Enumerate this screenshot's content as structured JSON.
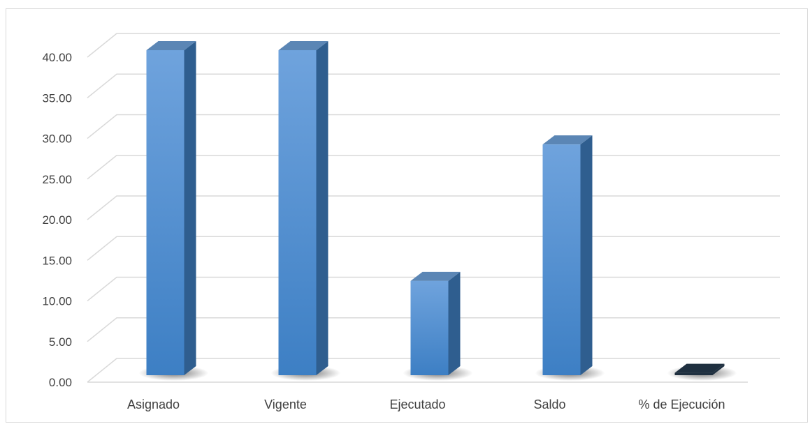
{
  "chart_data": {
    "type": "bar",
    "style": "3d-column",
    "categories": [
      "Asignado",
      "Vigente",
      "Ejecutado",
      "Saldo",
      "% de Ejecución"
    ],
    "values": [
      40.0,
      40.0,
      11.6,
      28.4,
      0.29
    ],
    "ylim": [
      0,
      40
    ],
    "yticks": [
      "0.00",
      "5.00",
      "10.00",
      "15.00",
      "20.00",
      "25.00",
      "30.00",
      "35.00",
      "40.00"
    ],
    "grid": true,
    "legend": "none",
    "colors": {
      "front_top": "#6fa3dd",
      "front_bottom": "#3d7fc4",
      "side": "#2f5e8f",
      "top": "#5b86b5",
      "grid": "#d9d9d9",
      "axis_text": "#404040",
      "tiny_bar": "#1f3040"
    }
  }
}
